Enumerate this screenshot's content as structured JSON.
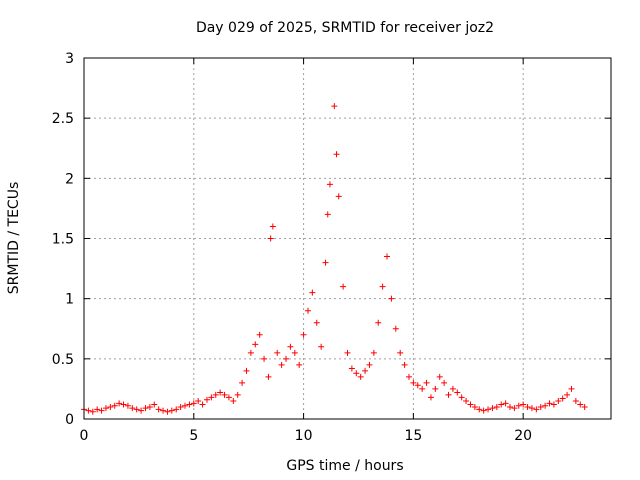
{
  "chart_data": {
    "type": "scatter",
    "title": "Day 029 of 2025, SRMTID for receiver joz2",
    "xlabel": "GPS time / hours",
    "ylabel": "SRMTID / TECUs",
    "xlim": [
      0,
      24
    ],
    "ylim": [
      0,
      3
    ],
    "xticks": [
      0,
      5,
      10,
      15,
      20
    ],
    "yticks": [
      0,
      0.5,
      1,
      1.5,
      2,
      2.5,
      3
    ],
    "xtick_labels": [
      "0",
      "5",
      "10",
      "15",
      "20"
    ],
    "ytick_labels": [
      "0",
      "0.5",
      "1",
      "1.5",
      "2",
      "2.5",
      "3"
    ],
    "grid": true,
    "marker": "plus",
    "color": "#ff0000",
    "series": [
      {
        "name": "SRMTID",
        "points": [
          [
            0.0,
            0.08
          ],
          [
            0.2,
            0.07
          ],
          [
            0.4,
            0.06
          ],
          [
            0.6,
            0.08
          ],
          [
            0.8,
            0.07
          ],
          [
            1.0,
            0.09
          ],
          [
            1.2,
            0.1
          ],
          [
            1.4,
            0.11
          ],
          [
            1.6,
            0.13
          ],
          [
            1.8,
            0.12
          ],
          [
            2.0,
            0.11
          ],
          [
            2.2,
            0.09
          ],
          [
            2.4,
            0.08
          ],
          [
            2.6,
            0.07
          ],
          [
            2.8,
            0.09
          ],
          [
            3.0,
            0.1
          ],
          [
            3.2,
            0.12
          ],
          [
            3.4,
            0.08
          ],
          [
            3.6,
            0.07
          ],
          [
            3.8,
            0.06
          ],
          [
            4.0,
            0.07
          ],
          [
            4.2,
            0.08
          ],
          [
            4.4,
            0.1
          ],
          [
            4.6,
            0.11
          ],
          [
            4.8,
            0.12
          ],
          [
            5.0,
            0.13
          ],
          [
            5.2,
            0.15
          ],
          [
            5.4,
            0.12
          ],
          [
            5.6,
            0.16
          ],
          [
            5.8,
            0.18
          ],
          [
            6.0,
            0.2
          ],
          [
            6.2,
            0.22
          ],
          [
            6.4,
            0.2
          ],
          [
            6.6,
            0.18
          ],
          [
            6.8,
            0.15
          ],
          [
            7.0,
            0.2
          ],
          [
            7.2,
            0.3
          ],
          [
            7.4,
            0.4
          ],
          [
            7.6,
            0.55
          ],
          [
            7.8,
            0.62
          ],
          [
            8.0,
            0.7
          ],
          [
            8.2,
            0.5
          ],
          [
            8.4,
            0.35
          ],
          [
            8.5,
            1.5
          ],
          [
            8.6,
            1.6
          ],
          [
            8.8,
            0.55
          ],
          [
            9.0,
            0.45
          ],
          [
            9.2,
            0.5
          ],
          [
            9.4,
            0.6
          ],
          [
            9.6,
            0.55
          ],
          [
            9.8,
            0.45
          ],
          [
            10.0,
            0.7
          ],
          [
            10.2,
            0.9
          ],
          [
            10.4,
            1.05
          ],
          [
            10.6,
            0.8
          ],
          [
            10.8,
            0.6
          ],
          [
            11.0,
            1.3
          ],
          [
            11.1,
            1.7
          ],
          [
            11.2,
            1.95
          ],
          [
            11.4,
            2.6
          ],
          [
            11.5,
            2.2
          ],
          [
            11.6,
            1.85
          ],
          [
            11.8,
            1.1
          ],
          [
            12.0,
            0.55
          ],
          [
            12.2,
            0.42
          ],
          [
            12.4,
            0.38
          ],
          [
            12.6,
            0.35
          ],
          [
            12.8,
            0.4
          ],
          [
            13.0,
            0.45
          ],
          [
            13.2,
            0.55
          ],
          [
            13.4,
            0.8
          ],
          [
            13.6,
            1.1
          ],
          [
            13.8,
            1.35
          ],
          [
            14.0,
            1.0
          ],
          [
            14.2,
            0.75
          ],
          [
            14.4,
            0.55
          ],
          [
            14.6,
            0.45
          ],
          [
            14.8,
            0.35
          ],
          [
            15.0,
            0.3
          ],
          [
            15.2,
            0.28
          ],
          [
            15.4,
            0.25
          ],
          [
            15.6,
            0.3
          ],
          [
            15.8,
            0.18
          ],
          [
            16.0,
            0.25
          ],
          [
            16.2,
            0.35
          ],
          [
            16.4,
            0.3
          ],
          [
            16.6,
            0.2
          ],
          [
            16.8,
            0.25
          ],
          [
            17.0,
            0.22
          ],
          [
            17.2,
            0.18
          ],
          [
            17.4,
            0.15
          ],
          [
            17.6,
            0.12
          ],
          [
            17.8,
            0.1
          ],
          [
            18.0,
            0.08
          ],
          [
            18.2,
            0.07
          ],
          [
            18.4,
            0.08
          ],
          [
            18.6,
            0.09
          ],
          [
            18.8,
            0.1
          ],
          [
            19.0,
            0.12
          ],
          [
            19.2,
            0.13
          ],
          [
            19.4,
            0.1
          ],
          [
            19.6,
            0.09
          ],
          [
            19.8,
            0.11
          ],
          [
            20.0,
            0.12
          ],
          [
            20.2,
            0.1
          ],
          [
            20.4,
            0.09
          ],
          [
            20.6,
            0.08
          ],
          [
            20.8,
            0.1
          ],
          [
            21.0,
            0.11
          ],
          [
            21.2,
            0.13
          ],
          [
            21.4,
            0.12
          ],
          [
            21.6,
            0.15
          ],
          [
            21.8,
            0.17
          ],
          [
            22.0,
            0.2
          ],
          [
            22.2,
            0.25
          ],
          [
            22.4,
            0.15
          ],
          [
            22.6,
            0.12
          ],
          [
            22.8,
            0.1
          ]
        ]
      }
    ]
  }
}
